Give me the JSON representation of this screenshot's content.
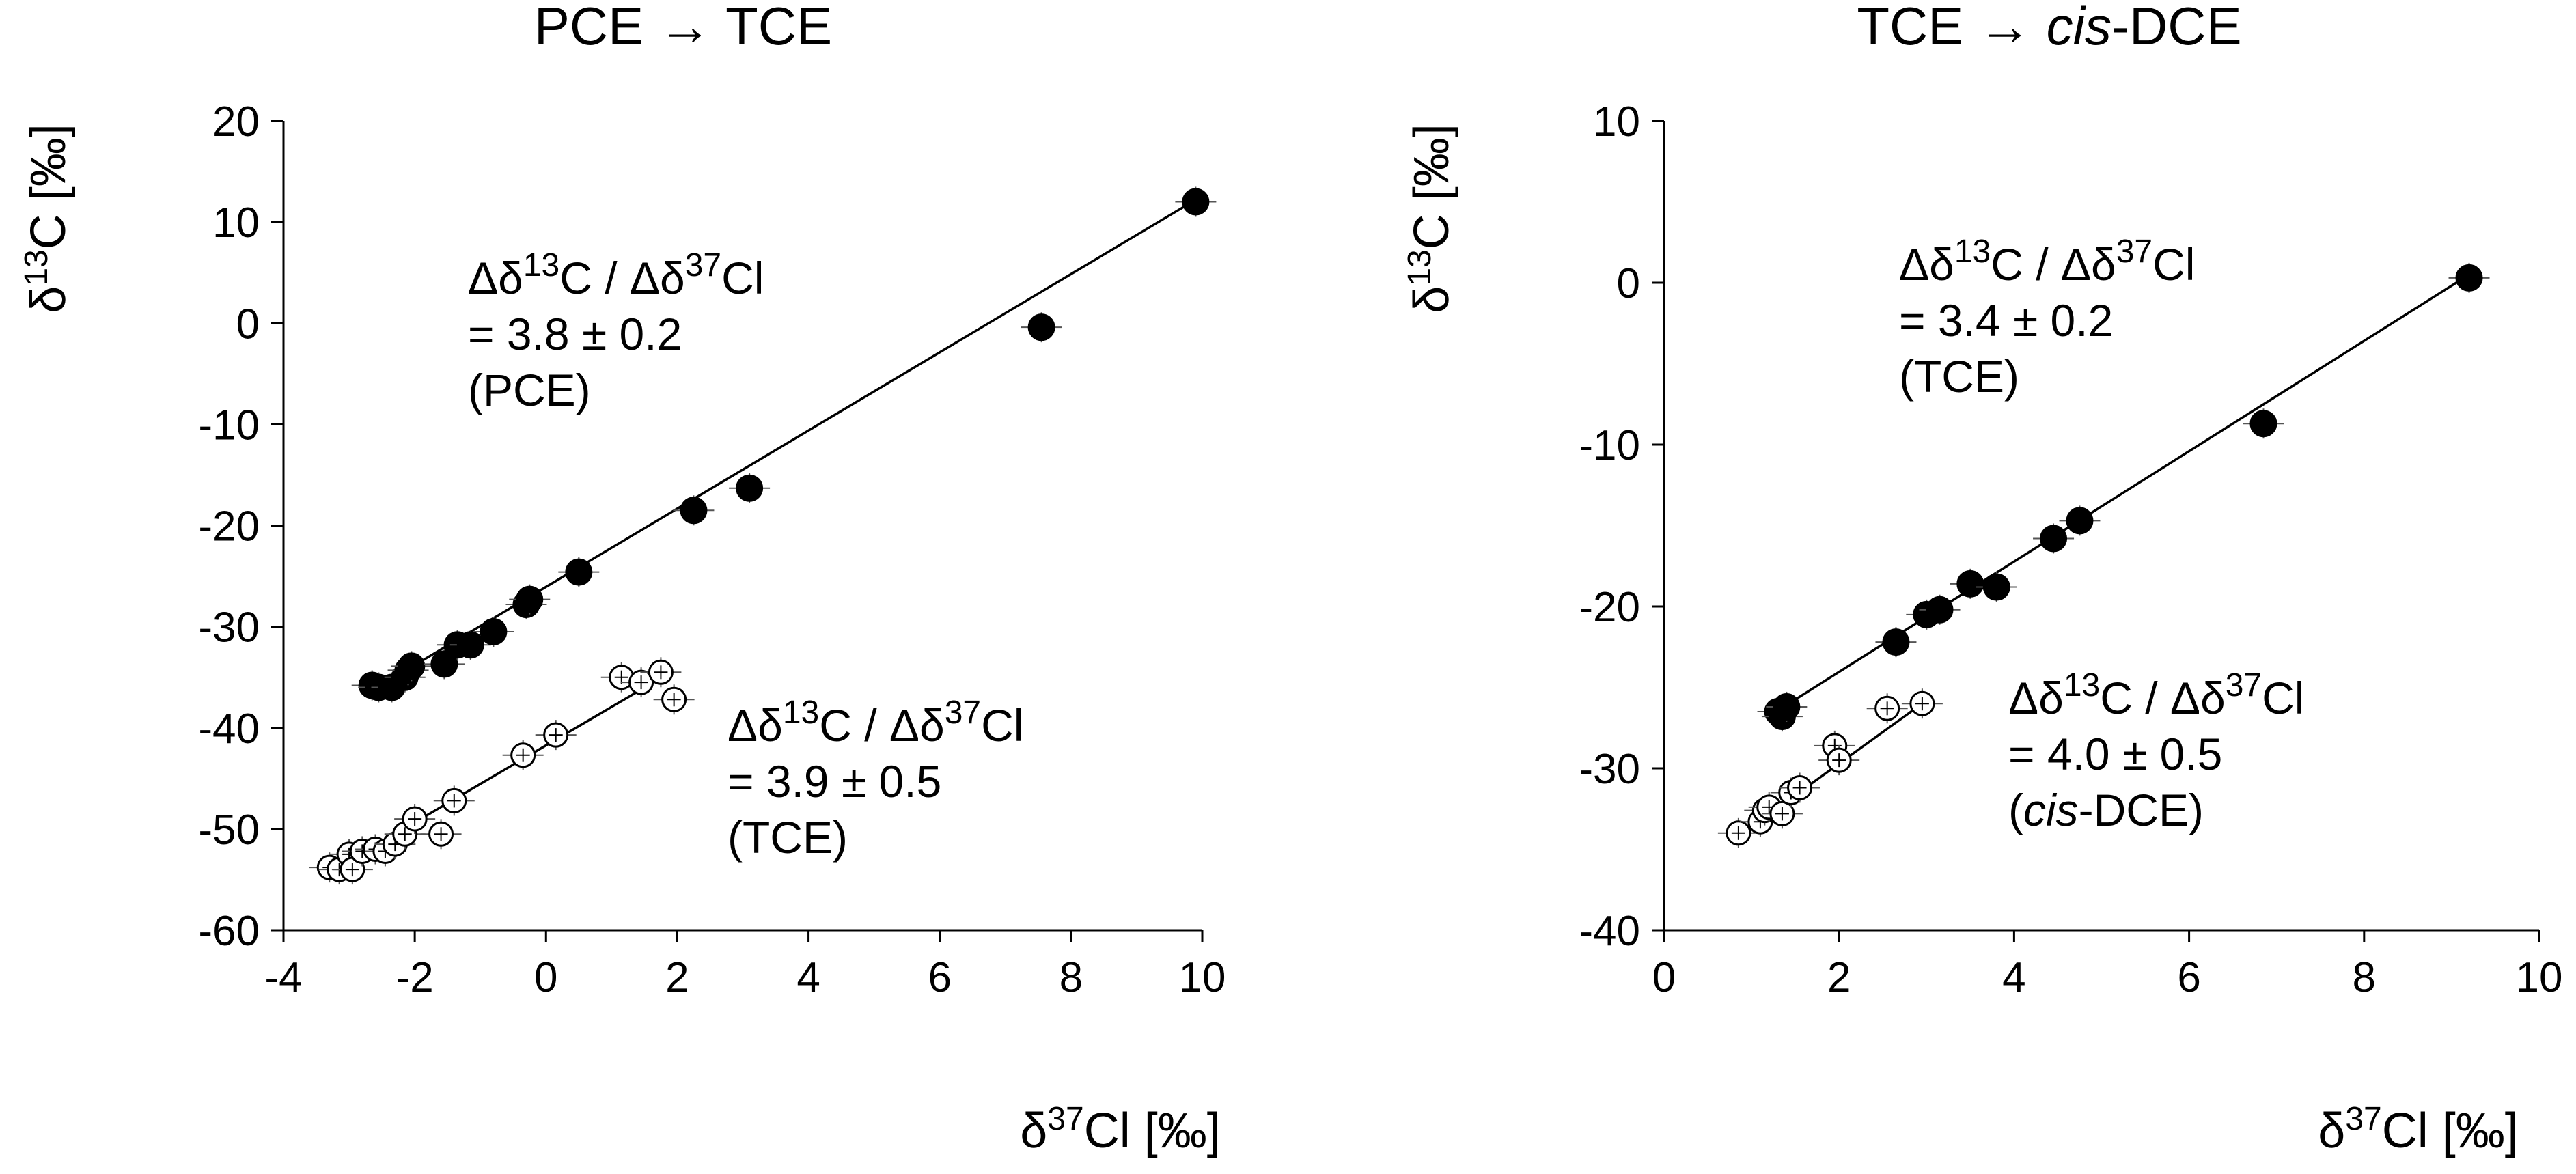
{
  "chart_data": [
    {
      "type": "scatter",
      "title_html": [
        "PCE",
        " → ",
        "TCE"
      ],
      "title_text": "PCE → TCE",
      "ylabel": "δ¹³C [‰]",
      "xlabel": "δ³⁷Cl [‰]",
      "xlim": [
        -4,
        10
      ],
      "ylim": [
        -60,
        20
      ],
      "xticks": [
        "-4",
        "-2",
        "0",
        "2",
        "4",
        "6",
        "8",
        "10"
      ],
      "yticks": [
        "-60",
        "-50",
        "-40",
        "-30",
        "-20",
        "-10",
        "0",
        "10",
        "20"
      ],
      "series": [
        {
          "name": "PCE",
          "marker": "filled",
          "x": [
            -2.65,
            -2.55,
            -2.35,
            -2.15,
            -2.1,
            -2.05,
            -1.55,
            -1.35,
            -1.15,
            -0.8,
            -0.3,
            -0.25,
            0.5,
            2.25,
            3.1,
            7.55,
            9.9
          ],
          "y": [
            -35.8,
            -36.0,
            -36.0,
            -35.0,
            -34.3,
            -33.9,
            -33.7,
            -31.8,
            -31.8,
            -30.5,
            -27.8,
            -27.3,
            -24.6,
            -18.5,
            -16.3,
            -0.4,
            12.0
          ],
          "fit": {
            "x": [
              -2.7,
              9.9
            ],
            "y": [
              -36.5,
              12.2
            ]
          }
        },
        {
          "name": "TCE",
          "marker": "open",
          "x": [
            -3.3,
            -3.15,
            -3.0,
            -2.95,
            -2.8,
            -2.6,
            -2.45,
            -2.3,
            -2.15,
            -2.0,
            -1.6,
            -1.4,
            -0.35,
            0.15,
            1.15,
            1.45,
            1.75,
            1.95
          ],
          "y": [
            -53.8,
            -54.0,
            -52.5,
            -54.0,
            -52.2,
            -52.0,
            -52.2,
            -51.5,
            -50.5,
            -49.0,
            -50.5,
            -47.2,
            -42.7,
            -40.7,
            -35.0,
            -35.5,
            -34.5,
            -37.2
          ],
          "fit": {
            "x": [
              -3.3,
              1.9
            ],
            "y": [
              -54.3,
              -34.5
            ]
          }
        }
      ],
      "annotations": [
        {
          "lines": [
            "Δδ¹³C / Δδ³⁷Cl",
            "= 3.8 ± 0.2",
            "(PCE)"
          ]
        },
        {
          "lines": [
            "Δδ¹³C / Δδ³⁷Cl",
            "= 3.9 ± 0.5",
            "(TCE)"
          ]
        }
      ]
    },
    {
      "type": "scatter",
      "title_html": [
        "TCE",
        " → ",
        "cis",
        "-DCE"
      ],
      "title_text": "TCE → cis-DCE",
      "ylabel": "δ¹³C [‰]",
      "xlabel": "δ³⁷Cl [‰]",
      "xlim": [
        0,
        10
      ],
      "ylim": [
        -40,
        10
      ],
      "xticks": [
        "0",
        "2",
        "4",
        "6",
        "8",
        "10"
      ],
      "yticks": [
        "-40",
        "-30",
        "-20",
        "-10",
        "0",
        "10"
      ],
      "series": [
        {
          "name": "TCE",
          "marker": "filled",
          "x": [
            1.3,
            1.35,
            1.4,
            2.65,
            3.0,
            3.15,
            3.5,
            3.8,
            4.45,
            4.75,
            6.85,
            9.2
          ],
          "y": [
            -26.5,
            -26.8,
            -26.2,
            -22.2,
            -20.5,
            -20.2,
            -18.6,
            -18.8,
            -15.8,
            -14.7,
            -8.7,
            0.3
          ],
          "fit": {
            "x": [
              1.25,
              9.2
            ],
            "y": [
              -26.6,
              0.5
            ]
          }
        },
        {
          "name": "cis-DCE",
          "marker": "open",
          "x": [
            0.85,
            1.1,
            1.15,
            1.2,
            1.35,
            1.45,
            1.55,
            1.95,
            2.0,
            2.55,
            2.95
          ],
          "y": [
            -34.0,
            -33.3,
            -32.6,
            -32.4,
            -32.8,
            -31.5,
            -31.2,
            -28.6,
            -29.5,
            -26.3,
            -26.0
          ],
          "fit": {
            "x": [
              0.85,
              2.95
            ],
            "y": [
              -34.2,
              -26.0
            ]
          }
        }
      ],
      "annotations": [
        {
          "lines": [
            "Δδ¹³C / Δδ³⁷Cl",
            "= 3.4 ± 0.2",
            "(TCE)"
          ]
        },
        {
          "lines": [
            "Δδ¹³C / Δδ³⁷Cl",
            "= 4.0 ± 0.5",
            "(cis-DCE)"
          ]
        }
      ]
    }
  ]
}
